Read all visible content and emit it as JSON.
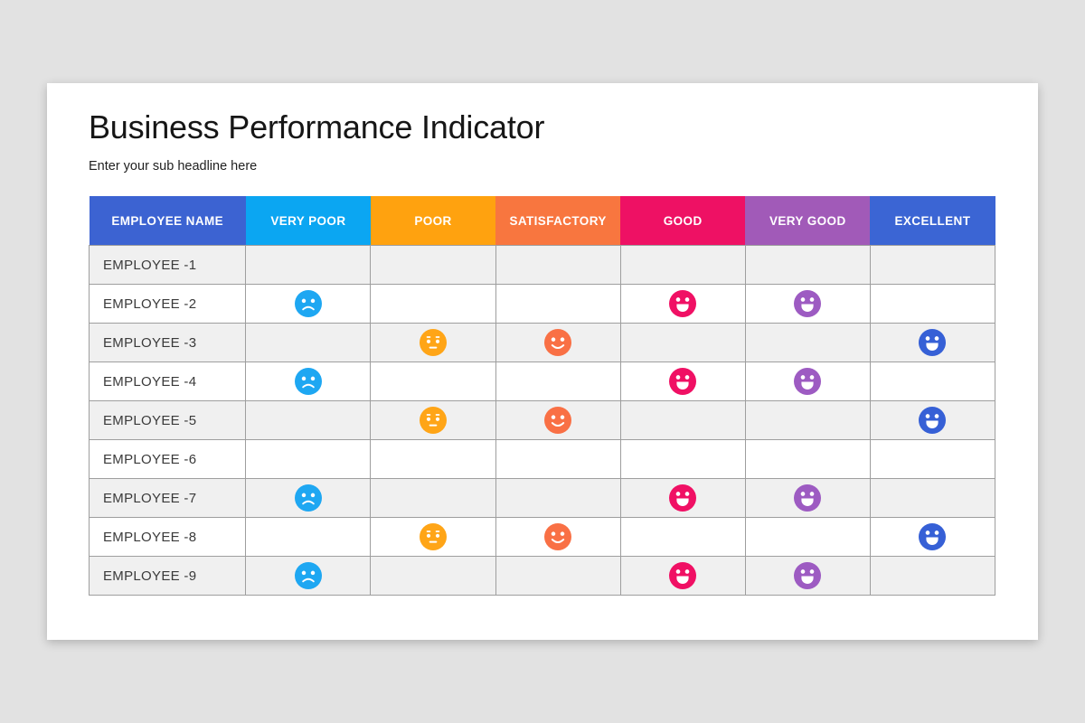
{
  "page": {
    "background": "#e2e2e2",
    "card_background": "#ffffff",
    "grid_border_color": "#9e9e9e",
    "alt_row_color": "#f0f0f0"
  },
  "header": {
    "title": "Business Performance Indicator",
    "subtitle": "Enter your sub headline here"
  },
  "table": {
    "columns": [
      {
        "key": "name",
        "label": "EMPLOYEE NAME",
        "color": "#3c63d2"
      },
      {
        "key": "very_poor",
        "label": "VERY POOR",
        "color": "#0ba6f2"
      },
      {
        "key": "poor",
        "label": "POOR",
        "color": "#ffa20f"
      },
      {
        "key": "satisfactory",
        "label": "SATISFACTORY",
        "color": "#f8763f"
      },
      {
        "key": "good",
        "label": "GOOD",
        "color": "#ee1164"
      },
      {
        "key": "very_good",
        "label": "VERY GOOD",
        "color": "#a15ab8"
      },
      {
        "key": "excellent",
        "label": "EXCELLENT",
        "color": "#3b65d4"
      }
    ],
    "emoji_styles": {
      "sad": {
        "color": "#1ea7f2",
        "icon": "sad-face-icon"
      },
      "neutral": {
        "color": "#ffa517",
        "icon": "neutral-face-icon"
      },
      "smile": {
        "color": "#f97045",
        "icon": "smiley-face-icon"
      },
      "grin-pink": {
        "color": "#f01064",
        "icon": "grinning-face-icon"
      },
      "grin-purple": {
        "color": "#9d5bc2",
        "icon": "grinning-face-icon"
      },
      "grin-blue": {
        "color": "#3660d6",
        "icon": "grinning-face-icon"
      }
    },
    "rows": [
      {
        "name": "EMPLOYEE -1",
        "ratings": {}
      },
      {
        "name": "EMPLOYEE -2",
        "ratings": {
          "very_poor": "sad",
          "good": "grin-pink",
          "very_good": "grin-purple"
        }
      },
      {
        "name": "EMPLOYEE -3",
        "ratings": {
          "poor": "neutral",
          "satisfactory": "smile",
          "excellent": "grin-blue"
        }
      },
      {
        "name": "EMPLOYEE -4",
        "ratings": {
          "very_poor": "sad",
          "good": "grin-pink",
          "very_good": "grin-purple"
        }
      },
      {
        "name": "EMPLOYEE -5",
        "ratings": {
          "poor": "neutral",
          "satisfactory": "smile",
          "excellent": "grin-blue"
        }
      },
      {
        "name": "EMPLOYEE -6",
        "ratings": {}
      },
      {
        "name": "EMPLOYEE -7",
        "ratings": {
          "very_poor": "sad",
          "good": "grin-pink",
          "very_good": "grin-purple"
        }
      },
      {
        "name": "EMPLOYEE -8",
        "ratings": {
          "poor": "neutral",
          "satisfactory": "smile",
          "excellent": "grin-blue"
        }
      },
      {
        "name": "EMPLOYEE -9",
        "ratings": {
          "very_poor": "sad",
          "good": "grin-pink",
          "very_good": "grin-purple"
        }
      }
    ]
  }
}
